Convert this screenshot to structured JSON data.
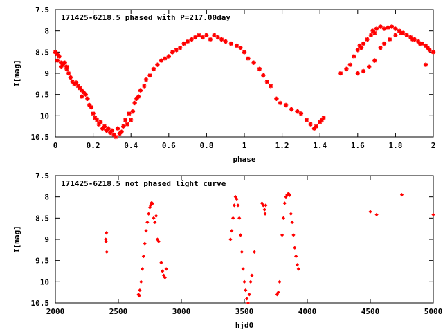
{
  "chart_data": [
    {
      "type": "scatter",
      "title": "171425-6218.5 phased with P=217.00day",
      "xlabel": "phase",
      "ylabel": "I[mag]",
      "xlim": [
        0,
        2
      ],
      "ylim": [
        10.5,
        7.5
      ],
      "y_inverted": true,
      "xticks": [
        "0",
        "0.2",
        "0.4",
        "0.6",
        "0.8",
        "1",
        "1.2",
        "1.4",
        "1.6",
        "1.8",
        "2"
      ],
      "yticks": [
        "7.5",
        "8",
        "8.5",
        "9",
        "9.5",
        "10",
        "10.5"
      ],
      "grid": false,
      "marker": "star",
      "color": "#ff0000",
      "points": [
        [
          0.0,
          8.5
        ],
        [
          0.01,
          8.55
        ],
        [
          0.01,
          8.7
        ],
        [
          0.02,
          8.6
        ],
        [
          0.03,
          8.75
        ],
        [
          0.03,
          8.85
        ],
        [
          0.04,
          8.8
        ],
        [
          0.05,
          8.75
        ],
        [
          0.06,
          8.9
        ],
        [
          0.06,
          8.85
        ],
        [
          0.07,
          9.0
        ],
        [
          0.08,
          9.1
        ],
        [
          0.09,
          9.2
        ],
        [
          0.1,
          9.25
        ],
        [
          0.11,
          9.22
        ],
        [
          0.12,
          9.3
        ],
        [
          0.13,
          9.35
        ],
        [
          0.14,
          9.4
        ],
        [
          0.14,
          9.55
        ],
        [
          0.15,
          9.45
        ],
        [
          0.16,
          9.5
        ],
        [
          0.17,
          9.6
        ],
        [
          0.18,
          9.75
        ],
        [
          0.19,
          9.8
        ],
        [
          0.2,
          9.95
        ],
        [
          0.21,
          10.05
        ],
        [
          0.22,
          10.1
        ],
        [
          0.23,
          10.2
        ],
        [
          0.24,
          10.15
        ],
        [
          0.25,
          10.3
        ],
        [
          0.26,
          10.25
        ],
        [
          0.27,
          10.35
        ],
        [
          0.28,
          10.3
        ],
        [
          0.29,
          10.4
        ],
        [
          0.3,
          10.35
        ],
        [
          0.31,
          10.45
        ],
        [
          0.32,
          10.5
        ],
        [
          0.33,
          10.3
        ],
        [
          0.34,
          10.42
        ],
        [
          0.35,
          10.38
        ],
        [
          0.36,
          10.25
        ],
        [
          0.37,
          10.1
        ],
        [
          0.38,
          10.2
        ],
        [
          0.39,
          9.95
        ],
        [
          0.4,
          10.1
        ],
        [
          0.41,
          9.9
        ],
        [
          0.42,
          9.7
        ],
        [
          0.43,
          9.6
        ],
        [
          0.44,
          9.55
        ],
        [
          0.45,
          9.4
        ],
        [
          0.47,
          9.3
        ],
        [
          0.48,
          9.15
        ],
        [
          0.5,
          9.05
        ],
        [
          0.52,
          8.9
        ],
        [
          0.54,
          8.8
        ],
        [
          0.56,
          8.7
        ],
        [
          0.58,
          8.65
        ],
        [
          0.6,
          8.6
        ],
        [
          0.62,
          8.5
        ],
        [
          0.64,
          8.45
        ],
        [
          0.66,
          8.4
        ],
        [
          0.68,
          8.3
        ],
        [
          0.7,
          8.25
        ],
        [
          0.72,
          8.2
        ],
        [
          0.74,
          8.15
        ],
        [
          0.76,
          8.1
        ],
        [
          0.78,
          8.15
        ],
        [
          0.8,
          8.1
        ],
        [
          0.82,
          8.2
        ],
        [
          0.84,
          8.1
        ],
        [
          0.86,
          8.15
        ],
        [
          0.88,
          8.2
        ],
        [
          0.9,
          8.25
        ],
        [
          0.93,
          8.3
        ],
        [
          0.96,
          8.35
        ],
        [
          0.98,
          8.4
        ],
        [
          1.0,
          8.5
        ],
        [
          1.02,
          8.65
        ],
        [
          1.05,
          8.75
        ],
        [
          1.08,
          8.9
        ],
        [
          1.1,
          9.05
        ],
        [
          1.12,
          9.2
        ],
        [
          1.14,
          9.3
        ],
        [
          1.17,
          9.6
        ],
        [
          1.19,
          9.7
        ],
        [
          1.22,
          9.75
        ],
        [
          1.25,
          9.85
        ],
        [
          1.28,
          9.9
        ],
        [
          1.3,
          9.95
        ],
        [
          1.33,
          10.1
        ],
        [
          1.35,
          10.2
        ],
        [
          1.37,
          10.3
        ],
        [
          1.38,
          10.25
        ],
        [
          1.4,
          10.15
        ],
        [
          1.41,
          10.1
        ],
        [
          1.42,
          10.05
        ],
        [
          1.54,
          8.9
        ],
        [
          1.56,
          8.8
        ],
        [
          1.58,
          8.6
        ],
        [
          1.6,
          8.45
        ],
        [
          1.61,
          8.35
        ],
        [
          1.62,
          8.4
        ],
        [
          1.63,
          8.3
        ],
        [
          1.65,
          8.2
        ],
        [
          1.67,
          8.1
        ],
        [
          1.68,
          8.0
        ],
        [
          1.69,
          8.05
        ],
        [
          1.7,
          7.95
        ],
        [
          1.72,
          7.9
        ],
        [
          1.74,
          7.95
        ],
        [
          1.76,
          7.92
        ],
        [
          1.78,
          7.9
        ],
        [
          1.8,
          7.95
        ],
        [
          1.82,
          8.0
        ],
        [
          1.84,
          8.05
        ],
        [
          1.86,
          8.1
        ],
        [
          1.88,
          8.15
        ],
        [
          1.9,
          8.2
        ],
        [
          1.92,
          8.25
        ],
        [
          1.94,
          8.3
        ],
        [
          1.96,
          8.35
        ],
        [
          1.97,
          8.4
        ],
        [
          1.98,
          8.45
        ],
        [
          2.0,
          8.5
        ],
        [
          1.6,
          9.0
        ],
        [
          1.63,
          8.95
        ],
        [
          1.66,
          8.85
        ],
        [
          1.69,
          8.7
        ],
        [
          1.72,
          8.4
        ],
        [
          1.74,
          8.3
        ],
        [
          1.77,
          8.2
        ],
        [
          1.8,
          8.1
        ],
        [
          1.83,
          8.05
        ],
        [
          1.86,
          8.1
        ],
        [
          1.89,
          8.2
        ],
        [
          1.93,
          8.3
        ],
        [
          1.96,
          8.8
        ],
        [
          1.51,
          9.0
        ]
      ]
    },
    {
      "type": "scatter",
      "title": "171425-6218.5 not phased light curve",
      "xlabel": "hjd0",
      "ylabel": "I[mag]",
      "xlim": [
        2000,
        5000
      ],
      "ylim": [
        10.5,
        7.5
      ],
      "y_inverted": true,
      "xticks": [
        "2000",
        "2500",
        "3000",
        "3500",
        "4000",
        "4500",
        "5000"
      ],
      "yticks": [
        "7.5",
        "8",
        "8.5",
        "9",
        "9.5",
        "10",
        "10.5"
      ],
      "grid": false,
      "marker": "diamond",
      "color": "#ff0000",
      "points": [
        [
          2400,
          9.0
        ],
        [
          2402,
          9.05
        ],
        [
          2405,
          8.85
        ],
        [
          2408,
          9.3
        ],
        [
          2660,
          10.3
        ],
        [
          2665,
          10.33
        ],
        [
          2670,
          10.2
        ],
        [
          2680,
          10.0
        ],
        [
          2690,
          9.7
        ],
        [
          2700,
          9.4
        ],
        [
          2710,
          9.1
        ],
        [
          2720,
          8.8
        ],
        [
          2730,
          8.6
        ],
        [
          2740,
          8.4
        ],
        [
          2750,
          8.25
        ],
        [
          2755,
          8.2
        ],
        [
          2760,
          8.15
        ],
        [
          2765,
          8.14
        ],
        [
          2770,
          8.16
        ],
        [
          2780,
          8.5
        ],
        [
          2790,
          8.6
        ],
        [
          2800,
          8.45
        ],
        [
          2810,
          9.0
        ],
        [
          2820,
          9.05
        ],
        [
          2840,
          9.55
        ],
        [
          2850,
          9.75
        ],
        [
          2860,
          9.85
        ],
        [
          2870,
          9.9
        ],
        [
          2880,
          9.7
        ],
        [
          3390,
          9.0
        ],
        [
          3400,
          8.8
        ],
        [
          3410,
          8.5
        ],
        [
          3420,
          8.2
        ],
        [
          3430,
          8.0
        ],
        [
          3440,
          8.05
        ],
        [
          3450,
          8.2
        ],
        [
          3460,
          8.5
        ],
        [
          3470,
          8.9
        ],
        [
          3480,
          9.3
        ],
        [
          3490,
          9.7
        ],
        [
          3500,
          10.0
        ],
        [
          3510,
          10.2
        ],
        [
          3520,
          10.4
        ],
        [
          3530,
          10.5
        ],
        [
          3540,
          10.3
        ],
        [
          3550,
          10.0
        ],
        [
          3560,
          9.85
        ],
        [
          3580,
          9.3
        ],
        [
          3640,
          8.15
        ],
        [
          3650,
          8.2
        ],
        [
          3660,
          8.3
        ],
        [
          3665,
          8.4
        ],
        [
          3670,
          8.2
        ],
        [
          3760,
          10.3
        ],
        [
          3770,
          10.25
        ],
        [
          3780,
          10.0
        ],
        [
          3800,
          8.9
        ],
        [
          3810,
          8.5
        ],
        [
          3820,
          8.15
        ],
        [
          3830,
          8.0
        ],
        [
          3840,
          7.95
        ],
        [
          3850,
          7.92
        ],
        [
          3860,
          7.96
        ],
        [
          3870,
          8.4
        ],
        [
          3880,
          8.6
        ],
        [
          3890,
          8.9
        ],
        [
          3900,
          9.2
        ],
        [
          3910,
          9.4
        ],
        [
          3920,
          9.6
        ],
        [
          3930,
          9.7
        ],
        [
          4500,
          8.35
        ],
        [
          4550,
          8.42
        ],
        [
          4750,
          7.95
        ],
        [
          5000,
          8.42
        ]
      ]
    }
  ]
}
